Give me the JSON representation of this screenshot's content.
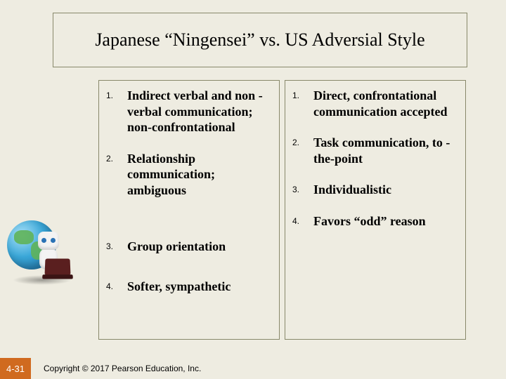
{
  "colors": {
    "slide_bg": "#eeece1",
    "panel_border": "#88886a",
    "slidenum_bg": "#d06a1f",
    "slidenum_text": "#ffffff",
    "body_text": "#000000"
  },
  "typography": {
    "title_font": "Times New Roman, serif",
    "title_size_pt": 26,
    "body_font": "Times New Roman, serif",
    "body_size_pt": 18,
    "body_weight": "bold",
    "number_font": "Arial, sans-serif",
    "number_size_pt": 12,
    "footer_font": "Arial, sans-serif",
    "footer_size_pt": 12
  },
  "title": "Japanese “Ningensei” vs. US Adversial Style",
  "left_column": {
    "items": [
      {
        "n": "1.",
        "text": "Indirect verbal and non -verbal communication; non-confrontational"
      },
      {
        "n": "2.",
        "text": "Relationship communication; ambiguous"
      },
      {
        "n": "3.",
        "text": "Group orientation"
      },
      {
        "n": "4.",
        "text": "Softer, sympathetic"
      }
    ]
  },
  "right_column": {
    "items": [
      {
        "n": "1.",
        "text": "Direct, confrontational communication accepted"
      },
      {
        "n": "2.",
        "text": "Task communication, to -the-point"
      },
      {
        "n": "3.",
        "text": "Individualistic"
      },
      {
        "n": "4.",
        "text": "Favors “odd” reason"
      }
    ]
  },
  "decor": {
    "description": "Cartoon white robot with blue eyes sitting in front of a globe, holding a dark red laptop",
    "globe_colors": [
      "#a8e0f7",
      "#3aa7d8",
      "#1a6ea8",
      "#5fb359"
    ],
    "robot_color": "#f3f3f3",
    "laptop_color": "#5a1f1f"
  },
  "slide_number": "4-31",
  "copyright": "Copyright © 2017 Pearson Education, Inc."
}
